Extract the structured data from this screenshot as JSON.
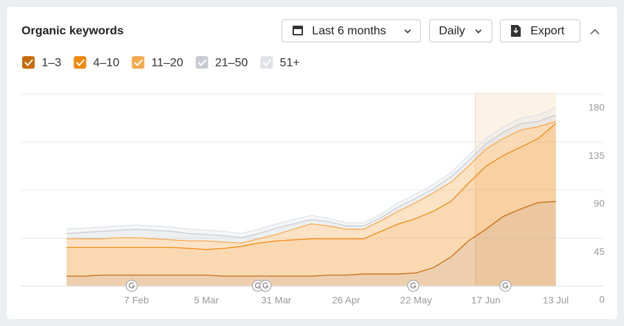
{
  "controls": {
    "period": "Last 6 months",
    "granularity": "Daily",
    "export": "Export"
  },
  "chart_data": {
    "type": "stacked-area",
    "title": "Organic keywords",
    "categories": [
      null,
      null,
      null,
      null,
      "7 Feb",
      null,
      null,
      null,
      "5 Mar",
      null,
      null,
      null,
      "31 Mar",
      null,
      null,
      null,
      "26 Apr",
      null,
      null,
      null,
      "22 May",
      null,
      null,
      null,
      "17 Jun",
      null,
      null,
      null,
      "13 Jul"
    ],
    "series": [
      {
        "name": "1–3",
        "color": "#c76a0a",
        "values": [
          9,
          9,
          10,
          10,
          10,
          10,
          10,
          10,
          10,
          9,
          9,
          9,
          9,
          9,
          9,
          10,
          10,
          11,
          11,
          11,
          12,
          17,
          27,
          42,
          53,
          65,
          72,
          78,
          79
        ]
      },
      {
        "name": "4–10",
        "color": "#f0890f",
        "values": [
          27,
          27,
          26,
          26,
          26,
          26,
          26,
          25,
          24,
          26,
          28,
          31,
          33,
          34,
          35,
          34,
          34,
          33,
          40,
          47,
          51,
          53,
          52,
          54,
          59,
          57,
          58,
          60,
          73
        ]
      },
      {
        "name": "11–20",
        "color": "#f6a84e",
        "values": [
          8,
          8,
          8,
          9,
          9,
          8,
          7,
          7,
          8,
          6,
          3,
          4,
          6,
          10,
          14,
          12,
          9,
          9,
          10,
          12,
          15,
          17,
          18,
          16,
          16,
          16,
          16,
          11,
          2
        ]
      },
      {
        "name": "21–50",
        "color": "#c8ccd2",
        "values": [
          5,
          6,
          7,
          7,
          8,
          8,
          8,
          7,
          6,
          6,
          5,
          5,
          6,
          5,
          4,
          4,
          3,
          3,
          3,
          4,
          4,
          4,
          5,
          5,
          5,
          6,
          6,
          5,
          6
        ]
      },
      {
        "name": "51+",
        "color": "#dfe2e6",
        "values": [
          4,
          4,
          4,
          4,
          4,
          4,
          4,
          4,
          4,
          4,
          4,
          4,
          4,
          4,
          4,
          3,
          3,
          3,
          3,
          4,
          4,
          4,
          4,
          5,
          5,
          5,
          5,
          6,
          7
        ]
      }
    ],
    "ylim": [
      0,
      180
    ],
    "yticks": [
      0,
      45,
      90,
      135,
      180
    ],
    "grid": true
  }
}
